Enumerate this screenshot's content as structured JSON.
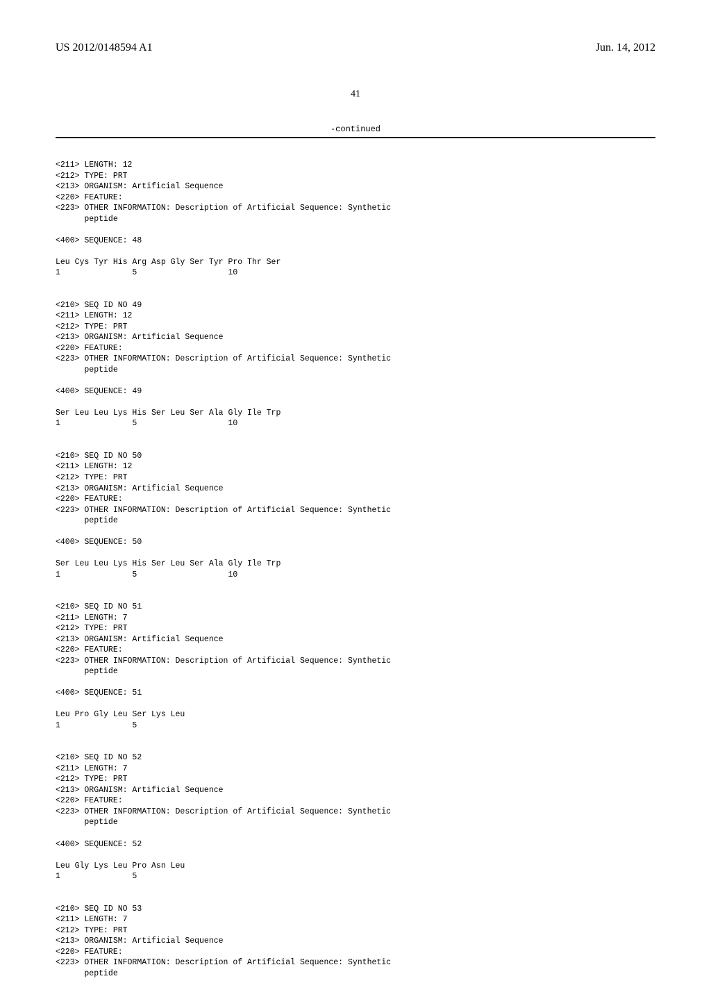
{
  "header": {
    "publication_number": "US 2012/0148594 A1",
    "publication_date": "Jun. 14, 2012"
  },
  "page_number": "41",
  "continued_label": "-continued",
  "sequence_listing": "<211> LENGTH: 12\n<212> TYPE: PRT\n<213> ORGANISM: Artificial Sequence\n<220> FEATURE:\n<223> OTHER INFORMATION: Description of Artificial Sequence: Synthetic\n      peptide\n\n<400> SEQUENCE: 48\n\nLeu Cys Tyr His Arg Asp Gly Ser Tyr Pro Thr Ser\n1               5                   10\n\n\n<210> SEQ ID NO 49\n<211> LENGTH: 12\n<212> TYPE: PRT\n<213> ORGANISM: Artificial Sequence\n<220> FEATURE:\n<223> OTHER INFORMATION: Description of Artificial Sequence: Synthetic\n      peptide\n\n<400> SEQUENCE: 49\n\nSer Leu Leu Lys His Ser Leu Ser Ala Gly Ile Trp\n1               5                   10\n\n\n<210> SEQ ID NO 50\n<211> LENGTH: 12\n<212> TYPE: PRT\n<213> ORGANISM: Artificial Sequence\n<220> FEATURE:\n<223> OTHER INFORMATION: Description of Artificial Sequence: Synthetic\n      peptide\n\n<400> SEQUENCE: 50\n\nSer Leu Leu Lys His Ser Leu Ser Ala Gly Ile Trp\n1               5                   10\n\n\n<210> SEQ ID NO 51\n<211> LENGTH: 7\n<212> TYPE: PRT\n<213> ORGANISM: Artificial Sequence\n<220> FEATURE:\n<223> OTHER INFORMATION: Description of Artificial Sequence: Synthetic\n      peptide\n\n<400> SEQUENCE: 51\n\nLeu Pro Gly Leu Ser Lys Leu\n1               5\n\n\n<210> SEQ ID NO 52\n<211> LENGTH: 7\n<212> TYPE: PRT\n<213> ORGANISM: Artificial Sequence\n<220> FEATURE:\n<223> OTHER INFORMATION: Description of Artificial Sequence: Synthetic\n      peptide\n\n<400> SEQUENCE: 52\n\nLeu Gly Lys Leu Pro Asn Leu\n1               5\n\n\n<210> SEQ ID NO 53\n<211> LENGTH: 7\n<212> TYPE: PRT\n<213> ORGANISM: Artificial Sequence\n<220> FEATURE:\n<223> OTHER INFORMATION: Description of Artificial Sequence: Synthetic\n      peptide"
}
